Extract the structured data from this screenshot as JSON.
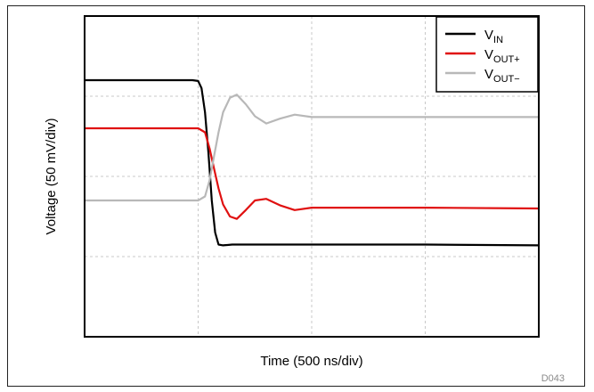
{
  "figure_id": "D043",
  "chart_data": {
    "type": "line",
    "xlabel": "Time (500 ns/div)",
    "ylabel": "Voltage (50 mV/div)",
    "x_divisions": 4,
    "y_divisions": 4,
    "xlim": [
      0,
      4
    ],
    "ylim": [
      0,
      4
    ],
    "grid": true,
    "grid_style": "dotted",
    "legend_position": "top-right",
    "x_units": "div (500 ns/div)",
    "y_units": "div (50 mV/div)",
    "series": [
      {
        "name": "V",
        "subscript": "IN",
        "color": "#000000",
        "x": [
          0,
          0.95,
          1.0,
          1.03,
          1.06,
          1.09,
          1.12,
          1.15,
          1.18,
          1.22,
          1.3,
          1.5,
          2.0,
          3.0,
          4.0
        ],
        "y": [
          3.2,
          3.2,
          3.19,
          3.1,
          2.8,
          2.3,
          1.7,
          1.3,
          1.15,
          1.14,
          1.15,
          1.15,
          1.15,
          1.15,
          1.14
        ]
      },
      {
        "name": "V",
        "subscript": "OUT+",
        "color": "#e01010",
        "x": [
          0,
          1.0,
          1.06,
          1.1,
          1.14,
          1.18,
          1.22,
          1.28,
          1.34,
          1.42,
          1.5,
          1.6,
          1.72,
          1.85,
          2.0,
          2.3,
          3.0,
          4.0
        ],
        "y": [
          2.6,
          2.6,
          2.55,
          2.35,
          2.1,
          1.85,
          1.65,
          1.5,
          1.47,
          1.58,
          1.7,
          1.72,
          1.64,
          1.58,
          1.61,
          1.61,
          1.61,
          1.6
        ]
      },
      {
        "name": "V",
        "subscript": "OUT−",
        "color": "#b8b8b8",
        "x": [
          0,
          1.0,
          1.06,
          1.1,
          1.14,
          1.18,
          1.22,
          1.28,
          1.34,
          1.42,
          1.5,
          1.6,
          1.72,
          1.85,
          2.0,
          2.3,
          3.0,
          4.0
        ],
        "y": [
          1.7,
          1.7,
          1.75,
          1.95,
          2.25,
          2.55,
          2.8,
          2.98,
          3.02,
          2.9,
          2.75,
          2.66,
          2.72,
          2.77,
          2.74,
          2.74,
          2.74,
          2.74
        ]
      }
    ]
  }
}
